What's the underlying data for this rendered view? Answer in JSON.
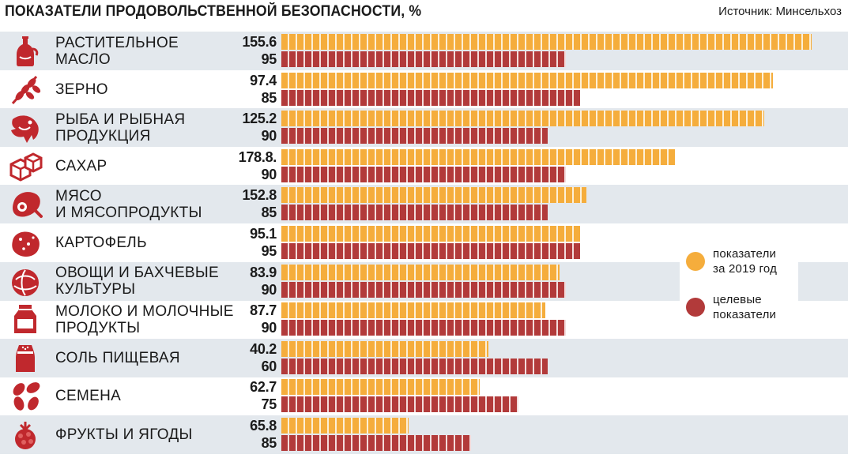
{
  "header": {
    "title": "ПОКАЗАТЕЛИ ПРОДОВОЛЬСТВЕННОЙ БЕЗОПАСНОСТИ, %",
    "source": "Источник: Минсельхоз"
  },
  "legend": {
    "actual_label": "показатели\nза 2019 год",
    "target_label": "целевые\nпоказатели"
  },
  "colors": {
    "actual": "#f5ad3c",
    "target": "#b23a3a",
    "row_band": "#e3e8ed",
    "icon": "#c0282d"
  },
  "chart_data": {
    "type": "bar",
    "orientation": "horizontal",
    "title": "ПОКАЗАТЕЛИ ПРОДОВОЛЬСТВЕННОЙ БЕЗОПАСНОСТИ, %",
    "categories": [
      "РАСТИТЕЛЬНОЕ\nМАСЛО",
      "ЗЕРНО",
      "РЫБА И РЫБНАЯ\nПРОДУКЦИЯ",
      "САХАР",
      "МЯСО\nИ МЯСОПРОДУКТЫ",
      "КАРТОФЕЛЬ",
      "ОВОЩИ И БАХЧЕВЫЕ\nКУЛЬТУРЫ",
      "МОЛОКО И МОЛОЧНЫЕ\nПРОДУКТЫ",
      "СОЛЬ ПИЩЕВАЯ",
      "СЕМЕНА",
      "ФРУКТЫ И ЯГОДЫ"
    ],
    "icons": [
      "bottle-icon",
      "wheat-icon",
      "fish-icon",
      "sugar-cubes-icon",
      "ham-icon",
      "potato-icon",
      "cabbage-icon",
      "milk-carton-icon",
      "salt-shaker-icon",
      "seeds-icon",
      "raspberry-icon"
    ],
    "series": [
      {
        "name": "показатели за 2019 год",
        "labels": [
          "155.6",
          "97.4",
          "125.2",
          "178.8.",
          "152.8",
          "95.1",
          "83.9",
          "87.7",
          "40.2",
          "62.7",
          "65.8"
        ]
      },
      {
        "name": "целевые показатели",
        "labels": [
          "95",
          "85",
          "90",
          "90",
          "85",
          "95",
          "90",
          "90",
          "60",
          "75",
          "85"
        ]
      }
    ],
    "bar_lengths": {
      "actual": [
        179,
        166,
        163,
        133,
        103,
        101,
        94,
        89,
        70,
        67,
        43
      ],
      "target": [
        96,
        101,
        90,
        96,
        90,
        101,
        96,
        96,
        90,
        80,
        64
      ]
    },
    "xlim": [
      0,
      190
    ],
    "xlabel": "",
    "ylabel": ""
  }
}
